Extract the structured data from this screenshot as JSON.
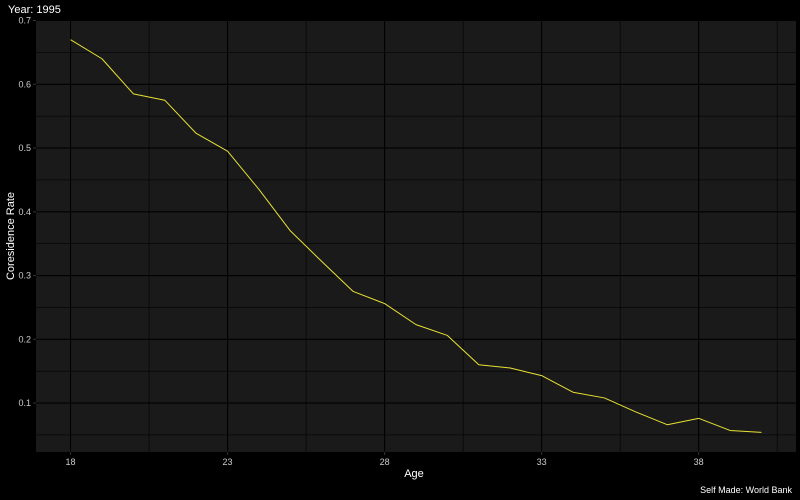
{
  "chart_data": {
    "type": "line",
    "title": "Year: 1995",
    "xlabel": "Age",
    "ylabel": "Coresidence Rate",
    "caption": "Self Made: World Bank",
    "x": [
      18,
      19,
      20,
      21,
      22,
      23,
      24,
      25,
      26,
      27,
      28,
      29,
      30,
      31,
      32,
      33,
      34,
      35,
      36,
      37,
      38,
      39,
      40
    ],
    "series": [
      {
        "values": [
          0.67,
          0.64,
          0.585,
          0.575,
          0.523,
          0.495,
          0.435,
          0.37,
          0.322,
          0.275,
          0.256,
          0.223,
          0.206,
          0.16,
          0.155,
          0.143,
          0.117,
          0.108,
          0.086,
          0.066,
          0.076,
          0.057,
          0.054
        ]
      }
    ],
    "xticks": [
      18,
      23,
      28,
      33,
      38
    ],
    "yticks": [
      0.1,
      0.2,
      0.3,
      0.4,
      0.5,
      0.6,
      0.7
    ],
    "xlim": [
      16.9,
      41.1
    ],
    "ylim": [
      0.0232,
      0.7008
    ],
    "grid": true,
    "legend": "none",
    "colors": {
      "background": "#000000",
      "panel": "#1a1a1a",
      "grid": "#000000",
      "text": "#ffffff",
      "line": "#e8e234"
    }
  }
}
